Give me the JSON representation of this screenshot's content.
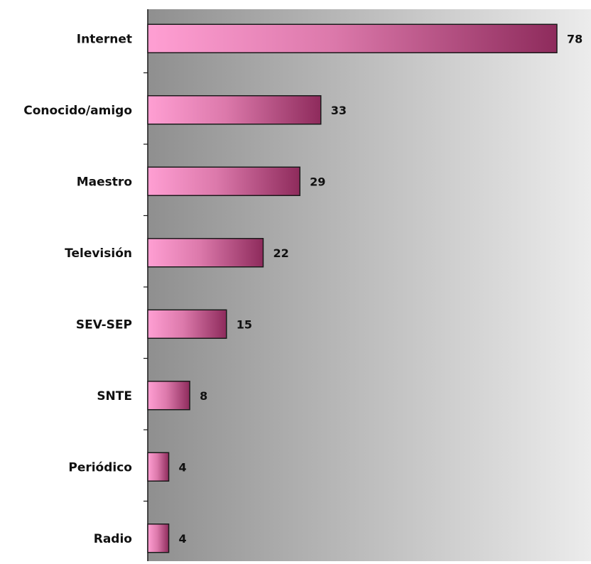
{
  "chart_data": {
    "type": "bar",
    "orientation": "horizontal",
    "categories": [
      "Internet",
      "Conocido/amigo",
      "Maestro",
      "Televisión",
      "SEV-SEP",
      "SNTE",
      "Periódico",
      "Radio"
    ],
    "values": [
      78,
      33,
      29,
      22,
      15,
      8,
      4,
      4
    ],
    "title": "",
    "xlabel": "",
    "ylabel": "",
    "xlim": [
      0,
      78
    ],
    "grid": false,
    "legend": "none",
    "data_labels": true,
    "colors": {
      "bar_gradient_start": "#ff9fd3",
      "bar_gradient_end": "#8e2b5c",
      "bar_stroke": "#1a1a1a",
      "plot_bg_start": "#8f8f8f",
      "plot_bg_end": "#ececec",
      "axis": "#1a1a1a"
    }
  }
}
